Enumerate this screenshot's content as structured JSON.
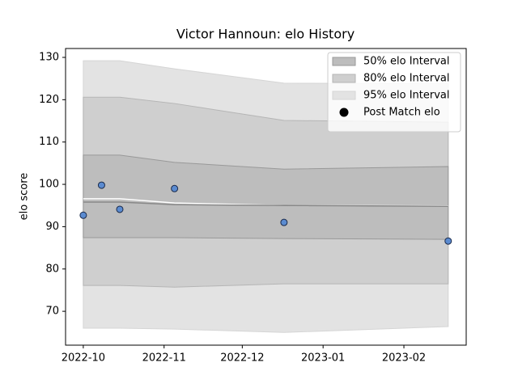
{
  "chart_data": {
    "type": "band",
    "title": "Victor Hannoun: elo History",
    "y_label": "elo score",
    "x": [
      0,
      7,
      14,
      35,
      77,
      140
    ],
    "xlim": [
      -6.8,
      146.9
    ],
    "xticks": [
      {
        "value": 0,
        "label": "2022-10"
      },
      {
        "value": 31,
        "label": "2022-11"
      },
      {
        "value": 61,
        "label": "2022-12"
      },
      {
        "value": 92,
        "label": "2023-01"
      },
      {
        "value": 123,
        "label": "2023-02"
      }
    ],
    "ylim": [
      62,
      132.1
    ],
    "yticks": [
      70,
      80,
      90,
      100,
      110,
      120,
      130
    ],
    "legend": "upper right",
    "bands": [
      {
        "name": "50% elo Interval",
        "color": "#bdbdbd",
        "edge": "#999999",
        "upper": [
          106.9,
          106.9,
          106.9,
          105.2,
          103.6,
          104.2
        ],
        "lower": [
          87.4,
          87.4,
          87.4,
          87.4,
          87.2,
          87.0
        ]
      },
      {
        "name": "80% elo Interval",
        "color": "#cfcfcf",
        "edge": "#b5b5b5",
        "upper": [
          120.6,
          120.6,
          120.6,
          119.1,
          115.1,
          114.7
        ],
        "lower": [
          76.1,
          76.1,
          76.1,
          75.7,
          76.5,
          76.5
        ]
      },
      {
        "name": "95% elo Interval",
        "color": "#e3e3e3",
        "edge": "#d5d5d5",
        "upper": [
          129.2,
          129.2,
          129.2,
          127.3,
          123.9,
          123.8
        ],
        "lower": [
          66.0,
          66.0,
          66.0,
          65.8,
          65.0,
          66.4
        ]
      }
    ],
    "lines": [
      {
        "color": "#ffffff",
        "values": [
          96.6,
          96.6,
          96.6,
          95.6,
          95.0,
          94.9
        ]
      },
      {
        "color": "#888888",
        "values": [
          95.8,
          95.8,
          95.8,
          95.2,
          95.0,
          94.8
        ]
      }
    ],
    "points": {
      "name": "Post Match elo",
      "color": "#5b8bd0",
      "edge": "#1a2a4a",
      "values": [
        92.7,
        99.8,
        94.1,
        99.0,
        91.0,
        86.6
      ]
    }
  }
}
